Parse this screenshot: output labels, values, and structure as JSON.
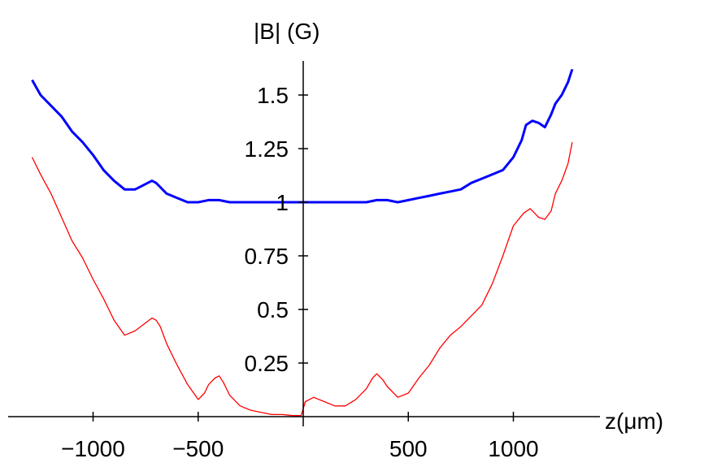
{
  "chart_data": {
    "type": "line",
    "title": "",
    "xlabel": "z(μm)",
    "ylabel": "|B| (G)",
    "xlim": [
      -1300,
      1300
    ],
    "ylim": [
      0,
      1.65
    ],
    "grid": false,
    "x_ticks": [
      {
        "value": -1000,
        "label": "−1000"
      },
      {
        "value": -500,
        "label": "−500"
      },
      {
        "value": 500,
        "label": "500"
      },
      {
        "value": 1000,
        "label": "1000"
      }
    ],
    "y_ticks": [
      {
        "value": 0.25,
        "label": "0.25"
      },
      {
        "value": 0.5,
        "label": "0.5"
      },
      {
        "value": 0.75,
        "label": "0.75"
      },
      {
        "value": 1,
        "label": "1"
      },
      {
        "value": 1.25,
        "label": "1.25"
      },
      {
        "value": 1.5,
        "label": "1.5"
      }
    ],
    "series": [
      {
        "color": "#0000ff",
        "width": 3,
        "x": [
          -1290,
          -1250,
          -1200,
          -1150,
          -1100,
          -1050,
          -1000,
          -950,
          -900,
          -850,
          -800,
          -760,
          -720,
          -700,
          -680,
          -650,
          -600,
          -550,
          -500,
          -450,
          -400,
          -350,
          -300,
          -200,
          -100,
          0,
          100,
          200,
          300,
          350,
          400,
          450,
          500,
          550,
          600,
          650,
          700,
          750,
          800,
          850,
          900,
          950,
          1000,
          1040,
          1060,
          1090,
          1120,
          1150,
          1180,
          1200,
          1230,
          1260,
          1280
        ],
        "y": [
          1.57,
          1.5,
          1.45,
          1.4,
          1.33,
          1.28,
          1.22,
          1.15,
          1.1,
          1.06,
          1.06,
          1.08,
          1.1,
          1.09,
          1.07,
          1.04,
          1.02,
          1.0,
          1.0,
          1.01,
          1.01,
          1.0,
          1.0,
          1.0,
          1.0,
          1.0,
          1.0,
          1.0,
          1.0,
          1.01,
          1.01,
          1.0,
          1.01,
          1.02,
          1.03,
          1.04,
          1.05,
          1.06,
          1.09,
          1.11,
          1.13,
          1.15,
          1.21,
          1.29,
          1.36,
          1.38,
          1.37,
          1.35,
          1.41,
          1.46,
          1.5,
          1.56,
          1.62
        ]
      },
      {
        "color": "#ff0000",
        "width": 1.3,
        "x": [
          -1290,
          -1250,
          -1200,
          -1150,
          -1100,
          -1050,
          -1000,
          -950,
          -900,
          -850,
          -800,
          -760,
          -720,
          -700,
          -680,
          -650,
          -600,
          -550,
          -500,
          -470,
          -450,
          -420,
          -400,
          -380,
          -350,
          -300,
          -250,
          -200,
          -150,
          -100,
          -50,
          -10,
          10,
          50,
          100,
          150,
          200,
          250,
          300,
          330,
          350,
          380,
          400,
          450,
          500,
          550,
          600,
          650,
          700,
          750,
          800,
          850,
          900,
          950,
          1000,
          1050,
          1080,
          1100,
          1120,
          1150,
          1180,
          1200,
          1230,
          1260,
          1280
        ],
        "y": [
          1.21,
          1.13,
          1.04,
          0.93,
          0.82,
          0.74,
          0.64,
          0.55,
          0.45,
          0.38,
          0.4,
          0.43,
          0.46,
          0.45,
          0.42,
          0.34,
          0.24,
          0.15,
          0.08,
          0.11,
          0.15,
          0.18,
          0.19,
          0.16,
          0.1,
          0.05,
          0.03,
          0.02,
          0.01,
          0.01,
          0.005,
          0.005,
          0.07,
          0.09,
          0.07,
          0.05,
          0.05,
          0.08,
          0.13,
          0.18,
          0.2,
          0.17,
          0.14,
          0.09,
          0.11,
          0.18,
          0.24,
          0.32,
          0.38,
          0.42,
          0.47,
          0.52,
          0.62,
          0.75,
          0.89,
          0.95,
          0.97,
          0.95,
          0.93,
          0.92,
          0.96,
          1.04,
          1.1,
          1.18,
          1.28
        ]
      }
    ]
  }
}
